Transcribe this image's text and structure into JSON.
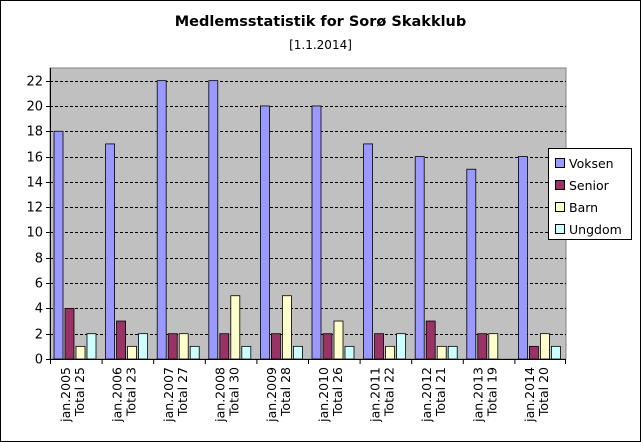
{
  "chart_data": {
    "type": "bar",
    "title": "Medlemsstatistik for Sorø Skakklub",
    "subtitle": "[1.1.2014]",
    "categories": [
      [
        "jan.2005",
        "Total 25"
      ],
      [
        "jan.2006",
        "Total 23"
      ],
      [
        "jan.2007",
        "Total 27"
      ],
      [
        "jan.2008",
        "Total 30"
      ],
      [
        "jan.2009",
        "Total 28"
      ],
      [
        "jan.2010",
        "Total 26"
      ],
      [
        "jan.2011",
        "Total 22"
      ],
      [
        "jan.2012",
        "Total 21"
      ],
      [
        "jan.2013",
        "Total 19"
      ],
      [
        "jan.2014",
        "Total 20"
      ]
    ],
    "series": [
      {
        "name": "Voksen",
        "color": "#9999ff",
        "values": [
          18,
          17,
          22,
          22,
          20,
          20,
          17,
          16,
          15,
          16
        ]
      },
      {
        "name": "Senior",
        "color": "#993366",
        "values": [
          4,
          3,
          2,
          2,
          2,
          2,
          2,
          3,
          2,
          1
        ]
      },
      {
        "name": "Barn",
        "color": "#ffffcc",
        "values": [
          1,
          1,
          2,
          5,
          5,
          3,
          1,
          1,
          2,
          2
        ]
      },
      {
        "name": "Ungdom",
        "color": "#ccffff",
        "values": [
          2,
          2,
          1,
          1,
          1,
          1,
          2,
          1,
          0,
          1
        ]
      }
    ],
    "yticks": [
      "0",
      "2",
      "4",
      "6",
      "8",
      "10",
      "12",
      "14",
      "16",
      "18",
      "20",
      "22"
    ],
    "ylim": [
      0,
      23
    ],
    "grid": true,
    "plot_background": "#c0c0c0",
    "legend_position": "right"
  }
}
